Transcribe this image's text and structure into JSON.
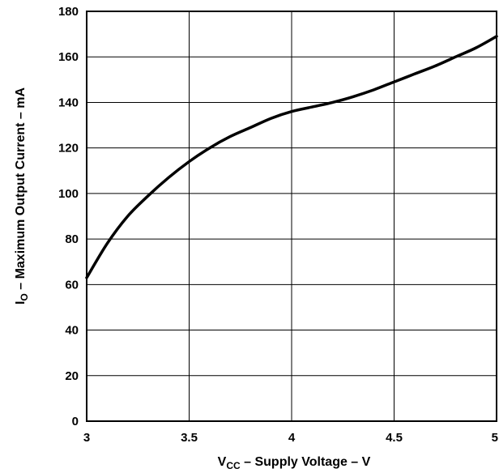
{
  "chart_data": {
    "type": "line",
    "title": "",
    "xlabel": {
      "main": "V",
      "sub": "CC",
      "rest": " – Supply Voltage – V"
    },
    "ylabel": {
      "main": "I",
      "sub": "O",
      "rest": " – Maximum Output Current – mA"
    },
    "xlim": [
      3,
      5
    ],
    "ylim": [
      0,
      180
    ],
    "xticks": [
      3,
      3.5,
      4,
      4.5,
      5
    ],
    "xtick_labels": [
      "3",
      "3.5",
      "4",
      "4.5",
      "5"
    ],
    "yticks": [
      0,
      20,
      40,
      60,
      80,
      100,
      120,
      140,
      160,
      180
    ],
    "ytick_labels": [
      "0",
      "20",
      "40",
      "60",
      "80",
      "100",
      "120",
      "140",
      "160",
      "180"
    ],
    "grid": true,
    "series": [
      {
        "x": [
          3.0,
          3.1,
          3.2,
          3.3,
          3.4,
          3.5,
          3.6,
          3.7,
          3.8,
          3.9,
          4.0,
          4.1,
          4.2,
          4.3,
          4.4,
          4.5,
          4.6,
          4.7,
          4.8,
          4.9,
          5.0
        ],
        "y": [
          63,
          78,
          90,
          99,
          107,
          114,
          120,
          125,
          129,
          133,
          136,
          138,
          140,
          142.5,
          145.5,
          149,
          152.5,
          156,
          160,
          164,
          169
        ],
        "color": "#000000"
      }
    ]
  }
}
